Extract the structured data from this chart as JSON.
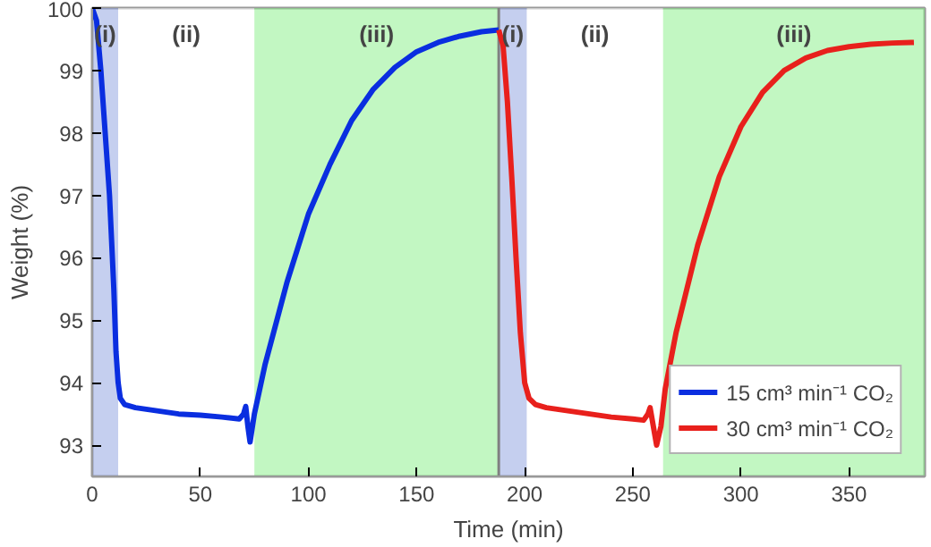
{
  "chart_data": {
    "type": "line",
    "xlabel": "Time (min)",
    "ylabel": "Weight (%)",
    "xlim": [
      0,
      385
    ],
    "ylim": [
      92.5,
      100
    ],
    "xticks": [
      0,
      50,
      100,
      150,
      200,
      250,
      300,
      350
    ],
    "yticks": [
      93,
      94,
      95,
      96,
      97,
      98,
      99,
      100
    ],
    "grid": false,
    "legend": "bottom right",
    "line_style": "solid",
    "marker": "none",
    "series": [
      {
        "name": "15 cm³ min⁻¹ CO₂",
        "color": "#0a2ee0",
        "x": [
          0,
          2,
          4,
          6,
          8,
          10,
          11,
          12,
          13,
          15,
          20,
          30,
          40,
          50,
          60,
          68,
          70,
          71,
          72,
          73,
          75,
          80,
          90,
          100,
          110,
          120,
          130,
          140,
          150,
          160,
          170,
          180,
          188
        ],
        "values": [
          100,
          99.8,
          99,
          98,
          97,
          95.5,
          94.5,
          94,
          93.75,
          93.65,
          93.6,
          93.55,
          93.5,
          93.48,
          93.45,
          93.42,
          93.5,
          93.62,
          93.3,
          93.05,
          93.5,
          94.3,
          95.6,
          96.7,
          97.5,
          98.2,
          98.7,
          99.05,
          99.3,
          99.45,
          99.55,
          99.62,
          99.65
        ]
      },
      {
        "name": "30 cm³ min⁻¹ CO₂",
        "color": "#e8201c",
        "x": [
          188,
          190,
          192,
          194,
          196,
          198,
          200,
          202,
          205,
          210,
          220,
          230,
          240,
          250,
          255,
          257,
          258,
          259,
          261,
          263,
          265,
          270,
          280,
          290,
          300,
          310,
          320,
          330,
          340,
          350,
          360,
          370,
          380
        ],
        "values": [
          99.65,
          99.4,
          98.5,
          97.3,
          96,
          94.8,
          94,
          93.75,
          93.65,
          93.6,
          93.55,
          93.5,
          93.45,
          93.42,
          93.4,
          93.5,
          93.6,
          93.4,
          93,
          93.3,
          93.9,
          94.8,
          96.2,
          97.3,
          98.1,
          98.65,
          99,
          99.2,
          99.32,
          99.38,
          99.42,
          99.44,
          99.45
        ]
      }
    ],
    "bands": [
      {
        "axis": "x",
        "from": 0,
        "to": 12,
        "label": "(i)",
        "color": "#8c9fe0"
      },
      {
        "axis": "x",
        "from": 12,
        "to": 75,
        "label": "(ii)",
        "color": "#ffffff"
      },
      {
        "axis": "x",
        "from": 75,
        "to": 188,
        "label": "(iii)",
        "color": "#86f086"
      },
      {
        "axis": "x",
        "from": 188,
        "to": 201,
        "label": "(i)",
        "color": "#8c9fe0"
      },
      {
        "axis": "x",
        "from": 201,
        "to": 264,
        "label": "(ii)",
        "color": "#ffffff"
      },
      {
        "axis": "x",
        "from": 264,
        "to": 385,
        "label": "(iii)",
        "color": "#86f086"
      }
    ],
    "ref_lines": [
      {
        "axis": "x",
        "value": 188,
        "color": "#808080"
      }
    ]
  }
}
